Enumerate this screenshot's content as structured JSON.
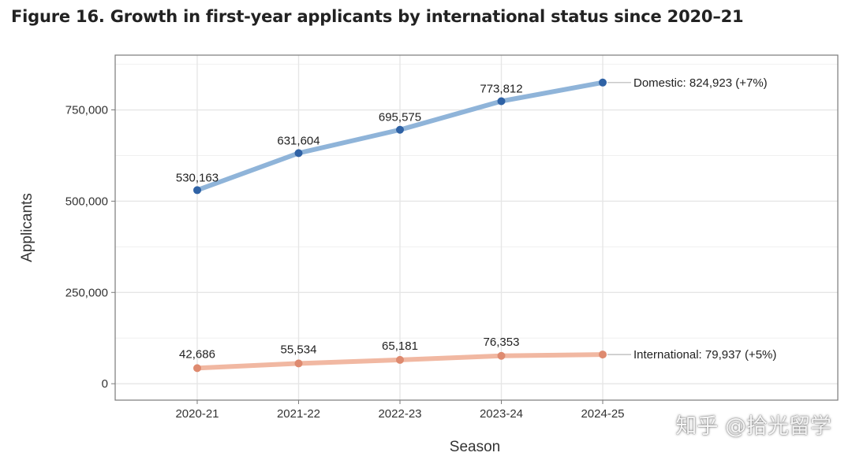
{
  "figure": {
    "title": "Figure 16. Growth in first-year applicants by international status since 2020–21"
  },
  "watermark": "知乎 @拾光留学",
  "colors": {
    "domestic_line": "#8fb4d9",
    "domestic_point": "#2f62a5",
    "international_line": "#f1b8a2",
    "international_point": "#de8a6f",
    "grid": "#e6e6e6",
    "frame": "#7a7a7a",
    "text": "#333333"
  },
  "chart_data": {
    "type": "line",
    "title": "Figure 16. Growth in first-year applicants by international status since 2020–21",
    "xlabel": "Season",
    "ylabel": "Applicants",
    "categories": [
      "2020-21",
      "2021-22",
      "2022-23",
      "2023-24",
      "2024-25"
    ],
    "ylim": [
      -45000,
      900000
    ],
    "yticks": [
      0,
      250000,
      500000,
      750000
    ],
    "ytick_labels": [
      "0",
      "250,000",
      "500,000",
      "750,000"
    ],
    "grid": true,
    "series": [
      {
        "name": "Domestic",
        "values": [
          530163,
          631604,
          695575,
          773812,
          824923
        ],
        "point_labels": [
          "530,163",
          "631,604",
          "695,575",
          "773,812"
        ],
        "end_label": "Domestic: 824,923 (+7%)"
      },
      {
        "name": "International",
        "values": [
          42686,
          55534,
          65181,
          76353,
          79937
        ],
        "point_labels": [
          "42,686",
          "55,534",
          "65,181",
          "76,353"
        ],
        "end_label": "International: 79,937 (+5%)"
      }
    ]
  }
}
